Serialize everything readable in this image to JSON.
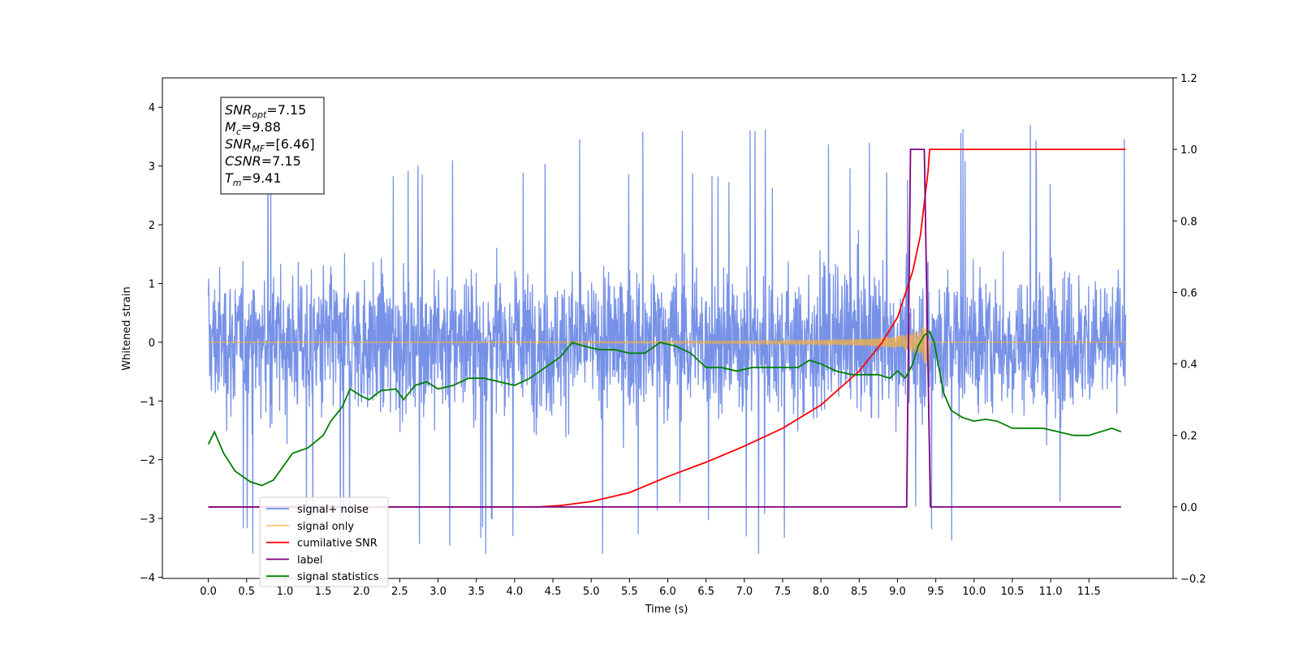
{
  "chart_data": {
    "type": "line",
    "title": "",
    "xlabel": "Time (s)",
    "ylabel": "Whitened strain",
    "xlim": [
      -0.6,
      12.6
    ],
    "ylim": [
      -4.02,
      4.5
    ],
    "y2lim": [
      -0.2,
      1.2
    ],
    "grid": false,
    "legend_position": "lower-left",
    "x_ticks": [
      "0.0",
      "0.5",
      "1.0",
      "1.5",
      "2.0",
      "2.5",
      "3.0",
      "3.5",
      "4.0",
      "4.5",
      "5.0",
      "5.5",
      "6.0",
      "6.5",
      "7.0",
      "7.5",
      "8.0",
      "8.5",
      "9.0",
      "9.5",
      "10.0",
      "10.5",
      "11.0",
      "11.5"
    ],
    "y_ticks": [
      "4",
      "3",
      "2",
      "1",
      "0",
      "−1",
      "−2",
      "−3",
      "−4"
    ],
    "y2_ticks": [
      "1.2",
      "1.0",
      "0.8",
      "0.6",
      "0.4",
      "0.2",
      "0.0",
      "−0.2"
    ],
    "annotation": {
      "lines": [
        {
          "main": "SNR",
          "sub": "opt",
          "rest": "=7.15"
        },
        {
          "main": "M",
          "sub": "c",
          "rest": "=9.88"
        },
        {
          "main": "SNR",
          "sub": "MF",
          "rest": "=[6.46]"
        },
        {
          "main": "CSNR",
          "sub": "",
          "rest": "=7.15"
        },
        {
          "main": "T",
          "sub": "m",
          "rest": "=9.41"
        }
      ]
    },
    "series": [
      {
        "name": "signal+ noise",
        "color": "#6f8be6",
        "axis": "left",
        "kind": "noise",
        "y_range": [
          -3.6,
          4.1
        ],
        "x_range": [
          0.0,
          11.98
        ]
      },
      {
        "name": "signal only",
        "color": "#f5b041",
        "axis": "left",
        "kind": "chirp",
        "peak_time": 9.41,
        "peak_amplitude": 0.55
      },
      {
        "name": "cumilative SNR",
        "color": "#ff0000",
        "axis": "right",
        "x": [
          0.0,
          4.3,
          4.6,
          5.0,
          5.5,
          6.0,
          6.5,
          7.0,
          7.5,
          8.0,
          8.5,
          8.8,
          9.0,
          9.2,
          9.3,
          9.4,
          9.42,
          11.98
        ],
        "y": [
          0.0,
          0.0,
          0.004,
          0.015,
          0.04,
          0.085,
          0.125,
          0.17,
          0.22,
          0.285,
          0.38,
          0.46,
          0.53,
          0.66,
          0.76,
          0.94,
          1.0,
          1.0
        ]
      },
      {
        "name": "label",
        "color": "#800080",
        "axis": "right",
        "x": [
          0.0,
          9.12,
          9.17,
          9.35,
          9.43,
          11.92
        ],
        "y": [
          0.0,
          0.0,
          1.0,
          1.0,
          0.0,
          0.0
        ]
      },
      {
        "name": "signal statistics",
        "color": "#008000",
        "axis": "right",
        "x": [
          0.0,
          0.08,
          0.2,
          0.35,
          0.55,
          0.7,
          0.85,
          1.0,
          1.1,
          1.3,
          1.5,
          1.6,
          1.75,
          1.85,
          2.0,
          2.1,
          2.25,
          2.45,
          2.55,
          2.7,
          2.85,
          3.0,
          3.2,
          3.4,
          3.6,
          3.8,
          4.0,
          4.2,
          4.4,
          4.6,
          4.75,
          4.9,
          5.1,
          5.3,
          5.5,
          5.7,
          5.9,
          6.1,
          6.3,
          6.5,
          6.7,
          6.9,
          7.1,
          7.3,
          7.5,
          7.7,
          7.85,
          8.0,
          8.2,
          8.4,
          8.6,
          8.75,
          8.9,
          9.0,
          9.1,
          9.2,
          9.27,
          9.35,
          9.42,
          9.48,
          9.6,
          9.7,
          9.85,
          10.0,
          10.15,
          10.3,
          10.5,
          10.7,
          10.9,
          11.1,
          11.3,
          11.5,
          11.65,
          11.8,
          11.92
        ],
        "y": [
          0.175,
          0.21,
          0.15,
          0.1,
          0.07,
          0.06,
          0.075,
          0.12,
          0.15,
          0.165,
          0.2,
          0.24,
          0.28,
          0.33,
          0.31,
          0.3,
          0.325,
          0.33,
          0.3,
          0.34,
          0.35,
          0.33,
          0.34,
          0.36,
          0.36,
          0.35,
          0.34,
          0.36,
          0.39,
          0.42,
          0.46,
          0.45,
          0.44,
          0.44,
          0.43,
          0.43,
          0.46,
          0.45,
          0.43,
          0.39,
          0.39,
          0.38,
          0.39,
          0.39,
          0.39,
          0.39,
          0.41,
          0.4,
          0.38,
          0.37,
          0.37,
          0.37,
          0.36,
          0.38,
          0.36,
          0.4,
          0.45,
          0.48,
          0.49,
          0.46,
          0.32,
          0.27,
          0.25,
          0.24,
          0.245,
          0.24,
          0.22,
          0.22,
          0.22,
          0.21,
          0.2,
          0.2,
          0.21,
          0.22,
          0.21
        ]
      }
    ]
  }
}
